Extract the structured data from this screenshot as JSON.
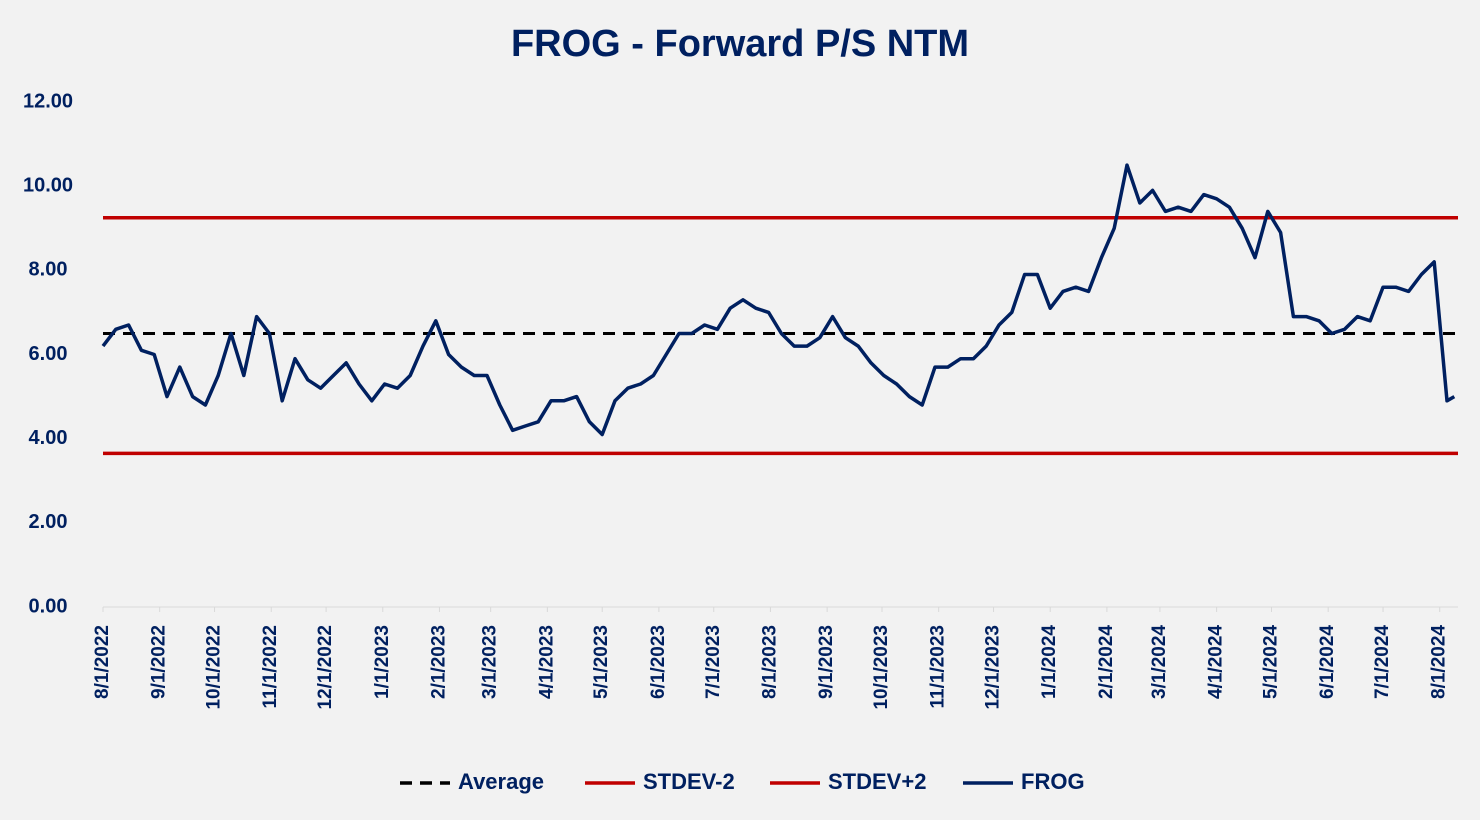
{
  "chart_data": {
    "type": "line",
    "title": "FROG - Forward P/S NTM",
    "xlim": [
      "8/1/2022",
      "8/11/2024"
    ],
    "xticks": [
      "8/1/2022",
      "9/1/2022",
      "10/1/2022",
      "11/1/2022",
      "12/1/2022",
      "1/1/2023",
      "2/1/2023",
      "3/1/2023",
      "4/1/2023",
      "5/1/2023",
      "6/1/2023",
      "7/1/2023",
      "8/1/2023",
      "9/1/2023",
      "10/1/2023",
      "11/1/2023",
      "12/1/2023",
      "1/1/2024",
      "2/1/2024",
      "3/1/2024",
      "4/1/2024",
      "5/1/2024",
      "6/1/2024",
      "7/1/2024",
      "8/1/2024"
    ],
    "ylim": [
      0,
      12
    ],
    "yticks": [
      {
        "value": 0,
        "label": "0.00"
      },
      {
        "value": 2,
        "label": "2.00"
      },
      {
        "value": 4,
        "label": "4.00"
      },
      {
        "value": 6,
        "label": "6.00"
      },
      {
        "value": 8,
        "label": "8.00"
      },
      {
        "value": 10,
        "label": "10.00"
      },
      {
        "value": 12,
        "label": "12.00"
      }
    ],
    "grid": false,
    "legend": "bottom",
    "series": [
      {
        "name": "Average",
        "color": "#000000",
        "dashed": true,
        "x": [
          "8/1/2022",
          "8/11/2024"
        ],
        "values": [
          6.5,
          6.5
        ]
      },
      {
        "name": "STDEV-2",
        "color": "#c00000",
        "dashed": false,
        "x": [
          "8/1/2022",
          "8/11/2024"
        ],
        "values": [
          3.65,
          3.65
        ]
      },
      {
        "name": "STDEV+2",
        "color": "#c00000",
        "dashed": false,
        "x": [
          "8/1/2022",
          "8/11/2024"
        ],
        "values": [
          9.25,
          9.25
        ]
      },
      {
        "name": "FROG",
        "color": "#002060",
        "dashed": false,
        "x": [
          "8/1/2022",
          "8/8/2022",
          "8/15/2022",
          "8/22/2022",
          "8/29/2022",
          "9/5/2022",
          "9/12/2022",
          "9/19/2022",
          "9/26/2022",
          "10/3/2022",
          "10/10/2022",
          "10/17/2022",
          "10/24/2022",
          "10/31/2022",
          "11/7/2022",
          "11/14/2022",
          "11/21/2022",
          "11/28/2022",
          "12/5/2022",
          "12/12/2022",
          "12/19/2022",
          "12/26/2022",
          "1/2/2023",
          "1/9/2023",
          "1/16/2023",
          "1/23/2023",
          "1/30/2023",
          "2/6/2023",
          "2/13/2023",
          "2/20/2023",
          "2/27/2023",
          "3/6/2023",
          "3/13/2023",
          "3/20/2023",
          "3/27/2023",
          "4/3/2023",
          "4/10/2023",
          "4/17/2023",
          "4/24/2023",
          "5/1/2023",
          "5/8/2023",
          "5/15/2023",
          "5/22/2023",
          "5/29/2023",
          "6/5/2023",
          "6/12/2023",
          "6/19/2023",
          "6/26/2023",
          "7/3/2023",
          "7/10/2023",
          "7/17/2023",
          "7/24/2023",
          "7/31/2023",
          "8/7/2023",
          "8/14/2023",
          "8/21/2023",
          "8/28/2023",
          "9/4/2023",
          "9/11/2023",
          "9/18/2023",
          "9/25/2023",
          "10/2/2023",
          "10/9/2023",
          "10/16/2023",
          "10/23/2023",
          "10/30/2023",
          "11/6/2023",
          "11/13/2023",
          "11/20/2023",
          "11/27/2023",
          "12/4/2023",
          "12/11/2023",
          "12/18/2023",
          "12/25/2023",
          "1/1/2024",
          "1/8/2024",
          "1/15/2024",
          "1/22/2024",
          "1/29/2024",
          "2/5/2024",
          "2/12/2024",
          "2/19/2024",
          "2/26/2024",
          "3/4/2024",
          "3/11/2024",
          "3/18/2024",
          "3/25/2024",
          "4/1/2024",
          "4/8/2024",
          "4/15/2024",
          "4/22/2024",
          "4/29/2024",
          "5/6/2024",
          "5/13/2024",
          "5/20/2024",
          "5/27/2024",
          "6/3/2024",
          "6/10/2024",
          "6/17/2024",
          "6/24/2024",
          "7/1/2024",
          "7/8/2024",
          "7/15/2024",
          "7/22/2024",
          "7/29/2024",
          "8/5/2024",
          "8/9/2024"
        ],
        "values": [
          6.2,
          6.6,
          6.7,
          6.1,
          6.0,
          5.0,
          5.7,
          5.0,
          4.8,
          5.5,
          6.5,
          5.5,
          6.9,
          6.5,
          4.9,
          5.9,
          5.4,
          5.2,
          5.5,
          5.8,
          5.3,
          4.9,
          5.3,
          5.2,
          5.5,
          6.2,
          6.8,
          6.0,
          5.7,
          5.5,
          5.5,
          4.8,
          4.2,
          4.3,
          4.4,
          4.9,
          4.9,
          5.0,
          4.4,
          4.1,
          4.9,
          5.2,
          5.3,
          5.5,
          6.0,
          6.5,
          6.5,
          6.7,
          6.6,
          7.1,
          7.3,
          7.1,
          7.0,
          6.5,
          6.2,
          6.2,
          6.4,
          6.9,
          6.4,
          6.2,
          5.8,
          5.5,
          5.3,
          5.0,
          4.8,
          5.7,
          5.7,
          5.9,
          5.9,
          6.2,
          6.7,
          7.0,
          7.9,
          7.9,
          7.1,
          7.5,
          7.6,
          7.5,
          8.3,
          9.0,
          10.5,
          9.6,
          9.9,
          9.4,
          9.5,
          9.4,
          9.8,
          9.7,
          9.5,
          9.0,
          8.3,
          9.4,
          8.9,
          6.9,
          6.9,
          6.8,
          6.5,
          6.6,
          6.9,
          6.8,
          7.6,
          7.6,
          7.5,
          7.9,
          8.2,
          4.9,
          5.0
        ]
      }
    ]
  }
}
